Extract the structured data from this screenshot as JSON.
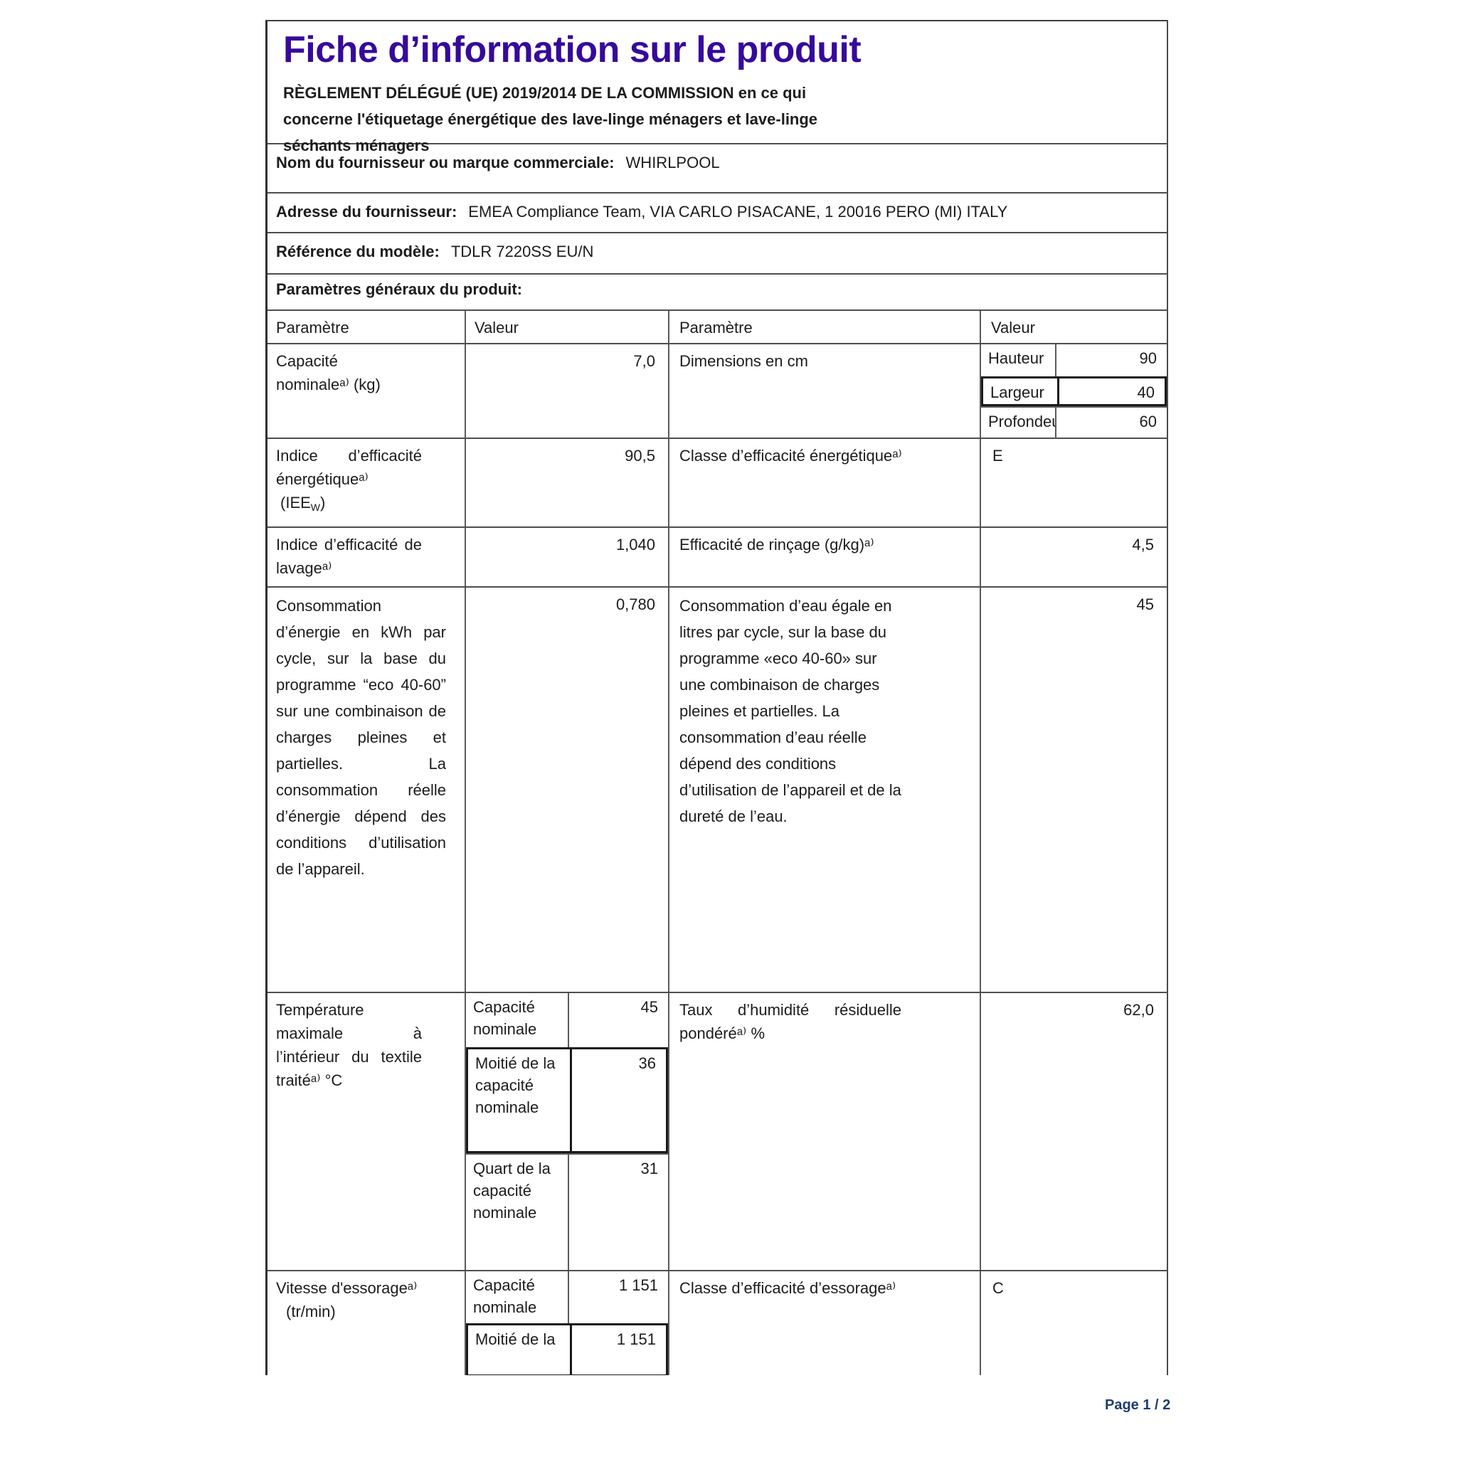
{
  "header": {
    "title": "Fiche d’information sur le produit",
    "regulation": "RÈGLEMENT DÉLÉGUÉ (UE) 2019/2014 DE LA COMMISSION en ce qui concerne l'étiquetage énergétique des lave-linge ménagers et lave-linge séchants ménagers"
  },
  "supplier": {
    "name_label": "Nom du fournisseur ou marque commerciale:",
    "name_value": "WHIRLPOOL",
    "address_label": "Adresse du fournisseur:",
    "address_value": "EMEA Compliance Team, VIA CARLO PISACANE, 1 20016 PERO (MI) ITALY",
    "model_label": "Référence du modèle:",
    "model_value": "TDLR 7220SS EU/N"
  },
  "section": {
    "general_title": "Paramètres généraux du produit:"
  },
  "table": {
    "headers": [
      "Paramètre",
      "Valeur",
      "Paramètre",
      "Valeur"
    ],
    "capacity": {
      "label_line1": "Capacité",
      "label_line2": "nominaleᵃ⁾  (kg)",
      "value": "7,0"
    },
    "dimensions": {
      "label": "Dimensions en cm",
      "items": [
        {
          "name": "Hauteur",
          "value": "90"
        },
        {
          "name": "Largeur",
          "value": "40"
        },
        {
          "name": "Profondeur",
          "value": "60"
        }
      ]
    },
    "energy_index": {
      "label": "Indice d’efficacité énergétiqueᵃ⁾",
      "iee_prefix": "(IEE",
      "iee_sub": "W",
      "iee_suffix": ")",
      "value": "90,5"
    },
    "energy_class": {
      "label": "Classe d’efficacité énergétiqueᵃ⁾",
      "value": "E"
    },
    "washing_index": {
      "label": "Indice d’efficacité de lavageᵃ⁾",
      "value": "1,040"
    },
    "rinsing": {
      "label": "Efficacité de rinçage (g/kg)ᵃ⁾",
      "value": "4,5"
    },
    "energy_consumption": {
      "text": "Consommation d’énergie en kWh par cycle, sur la base du programme “eco 40-60” sur une combinaison de charges pleines et partielles. La consommation réelle d’énergie dépend des conditions d’utilisation de l’appareil.",
      "value": "0,780"
    },
    "water_consumption": {
      "text": "Consommation d’eau égale en litres par cycle, sur la base du programme «eco 40-60» sur une combinaison de charges pleines et partielles. La consommation d’eau réelle dépend des conditions d’utilisation de l’appareil et de la dureté de l’eau.",
      "value": "45"
    },
    "temperature": {
      "label": "Température maximale à l’intérieur du textile traitéᵃ⁾  °C",
      "items": [
        {
          "name": "Capacité nominale",
          "value": "45"
        },
        {
          "name": "Moitié de la capacité nominale",
          "value": "36"
        },
        {
          "name": "Quart de la capacité nominale",
          "value": "31"
        }
      ]
    },
    "humidity": {
      "label": "Taux d’humidité résiduelle pondéréᵃ⁾  %",
      "value": "62,0"
    },
    "spin": {
      "label_line1": "Vitesse d'essorageᵃ⁾",
      "label_line2": "(tr/min)",
      "items": [
        {
          "name": "Capacité nominale",
          "value": "1 151"
        },
        {
          "name": "Moitié de la",
          "value": "1 151"
        }
      ]
    },
    "spin_class": {
      "label": "Classe d’efficacité d’essorageᵃ⁾",
      "value": "C"
    }
  },
  "footer": {
    "page_label": "Page 1 / 2"
  }
}
